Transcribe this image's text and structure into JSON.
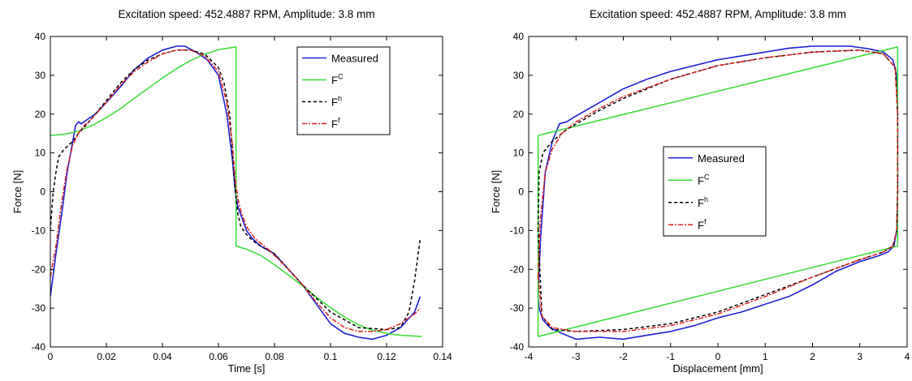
{
  "chart_data": [
    {
      "type": "line",
      "title": "Excitation speed: 452.4887 RPM, Amplitude: 3.8 mm",
      "xlabel": "Time [s]",
      "ylabel": "Force [N]",
      "xlim": [
        0,
        0.14
      ],
      "ylim": [
        -40,
        40
      ],
      "xticks": [
        0,
        0.02,
        0.04,
        0.06,
        0.08,
        0.1,
        0.12,
        0.14
      ],
      "xtick_labels": [
        "0",
        "0.02",
        "0.04",
        "0.06",
        "0.08",
        "0.1",
        "0.12",
        "0.14"
      ],
      "yticks": [
        -40,
        -30,
        -20,
        -10,
        0,
        10,
        20,
        30,
        40
      ],
      "ytick_labels": [
        "-40",
        "-30",
        "-20",
        "-10",
        "0",
        "10",
        "20",
        "30",
        "40"
      ],
      "grid": false,
      "legend_position": "top-right",
      "series": [
        {
          "name": "Measured",
          "base": "F",
          "sup": "",
          "color": "#1f1fd6",
          "dash": "",
          "x": [
            0,
            0.002,
            0.004,
            0.006,
            0.008,
            0.009,
            0.01,
            0.011,
            0.012,
            0.014,
            0.016,
            0.02,
            0.025,
            0.03,
            0.035,
            0.04,
            0.045,
            0.048,
            0.052,
            0.056,
            0.06,
            0.063,
            0.065,
            0.066,
            0.067,
            0.068,
            0.07,
            0.072,
            0.075,
            0.08,
            0.085,
            0.09,
            0.095,
            0.1,
            0.105,
            0.11,
            0.115,
            0.12,
            0.125,
            0.13,
            0.132
          ],
          "y": [
            -27,
            -16,
            -6,
            5,
            13,
            17,
            18,
            17.5,
            18,
            19,
            20,
            23,
            27,
            31.5,
            34.5,
            36.5,
            37.5,
            37.5,
            36,
            34,
            30,
            20,
            8,
            0,
            -4,
            -6,
            -10,
            -12,
            -14,
            -16,
            -20,
            -24,
            -29,
            -34,
            -36.5,
            -37.5,
            -38,
            -37,
            -35,
            -31,
            -27
          ]
        },
        {
          "name": "F^C",
          "base": "F",
          "sup": "C",
          "color": "#33dd33",
          "dash": "",
          "x": [
            0,
            0.005,
            0.01,
            0.015,
            0.02,
            0.025,
            0.03,
            0.035,
            0.04,
            0.045,
            0.05,
            0.055,
            0.06,
            0.0663,
            0.0663,
            0.07,
            0.075,
            0.08,
            0.085,
            0.09,
            0.095,
            0.1,
            0.105,
            0.11,
            0.115,
            0.12,
            0.125,
            0.13,
            0.1326
          ],
          "y": [
            14.5,
            14.8,
            15.6,
            17.1,
            19.1,
            21.4,
            24.1,
            26.7,
            29.3,
            31.7,
            33.8,
            35.4,
            36.6,
            37.3,
            -14,
            -14.8,
            -16.4,
            -18.8,
            -21.5,
            -24.3,
            -27.2,
            -29.9,
            -32.3,
            -34.3,
            -35.7,
            -36.5,
            -37,
            -37.2,
            -37.3
          ]
        },
        {
          "name": "F^h",
          "base": "F",
          "sup": "h",
          "color": "#000000",
          "dash": "4,3",
          "x": [
            0,
            0.001,
            0.002,
            0.003,
            0.005,
            0.008,
            0.01,
            0.015,
            0.02,
            0.025,
            0.03,
            0.035,
            0.04,
            0.045,
            0.05,
            0.055,
            0.06,
            0.062,
            0.064,
            0.065,
            0.066,
            0.067,
            0.068,
            0.07,
            0.072,
            0.075,
            0.08,
            0.09,
            0.1,
            0.11,
            0.12,
            0.125,
            0.128,
            0.13,
            0.132
          ],
          "y": [
            -10,
            0,
            5,
            9,
            11,
            13,
            15,
            19,
            23.5,
            28,
            31.5,
            34,
            35.5,
            36.5,
            36.5,
            35.5,
            32,
            28,
            20,
            10,
            0,
            -6,
            -9,
            -11,
            -12.5,
            -14,
            -16,
            -24,
            -31,
            -35,
            -35.5,
            -35,
            -31,
            -23,
            -12
          ]
        },
        {
          "name": "F^f",
          "base": "F",
          "sup": "f",
          "color": "#e02020",
          "dash": "6,2,2,2",
          "x": [
            0,
            0.002,
            0.004,
            0.006,
            0.008,
            0.01,
            0.012,
            0.015,
            0.02,
            0.025,
            0.03,
            0.035,
            0.04,
            0.045,
            0.05,
            0.055,
            0.06,
            0.063,
            0.065,
            0.066,
            0.067,
            0.068,
            0.07,
            0.073,
            0.078,
            0.085,
            0.09,
            0.095,
            0.1,
            0.105,
            0.11,
            0.115,
            0.12,
            0.125,
            0.13,
            0.132
          ],
          "y": [
            -22,
            -14,
            -3,
            6,
            12,
            15,
            17,
            19,
            23,
            27.5,
            31,
            33.5,
            35.5,
            36.5,
            36.5,
            35,
            31,
            23,
            12,
            3,
            -2,
            -5,
            -9,
            -12,
            -15,
            -20,
            -24,
            -28.5,
            -32.5,
            -35,
            -36,
            -36,
            -35.5,
            -34,
            -31.5,
            -30
          ]
        }
      ]
    },
    {
      "type": "line",
      "title": "Excitation speed: 452.4887 RPM, Amplitude: 3.8 mm",
      "xlabel": "Displacement [mm]",
      "ylabel": "Force [N]",
      "xlim": [
        -4,
        4
      ],
      "ylim": [
        -40,
        40
      ],
      "xticks": [
        -4,
        -3,
        -2,
        -1,
        0,
        1,
        2,
        3,
        4
      ],
      "xtick_labels": [
        "-4",
        "-3",
        "-2",
        "-1",
        "0",
        "1",
        "2",
        "3",
        "4"
      ],
      "yticks": [
        -40,
        -30,
        -20,
        -10,
        0,
        10,
        20,
        30,
        40
      ],
      "ytick_labels": [
        "-40",
        "-30",
        "-20",
        "-10",
        "0",
        "10",
        "20",
        "30",
        "40"
      ],
      "grid": false,
      "legend_position": "center",
      "series": [
        {
          "name": "Measured",
          "base": "F",
          "sup": "",
          "color": "#1f1fd6",
          "dash": "",
          "x": [
            -3.8,
            -3.75,
            -3.65,
            -3.5,
            -3.35,
            -3.2,
            -3,
            -2.5,
            -2,
            -1.5,
            -1,
            -0.5,
            0,
            0.5,
            1,
            1.5,
            2,
            2.5,
            2.8,
            3.2,
            3.5,
            3.7,
            3.78,
            3.8,
            3.8,
            3.78,
            3.72,
            3.6,
            3.4,
            3,
            2.5,
            2,
            1.5,
            1,
            0.5,
            0,
            -0.5,
            -1,
            -1.5,
            -2,
            -2.5,
            -3,
            -3.3,
            -3.55,
            -3.7,
            -3.78,
            -3.8
          ],
          "y": [
            -27,
            -12,
            5,
            13,
            17.5,
            18,
            19.5,
            23,
            26.5,
            29,
            31,
            32.5,
            34,
            35,
            36,
            37,
            37.5,
            37.5,
            37.5,
            36.8,
            36,
            34,
            30,
            20,
            0,
            -10,
            -14,
            -15.5,
            -16.5,
            -18,
            -20.5,
            -24,
            -27,
            -29,
            -31,
            -32.5,
            -34.5,
            -36,
            -37,
            -38,
            -37.5,
            -38,
            -36.5,
            -35,
            -33,
            -30,
            -27
          ]
        },
        {
          "name": "F^C",
          "base": "F",
          "sup": "C",
          "color": "#33dd33",
          "dash": "",
          "x": [
            -3.8,
            3.8,
            3.8,
            -3.8,
            -3.8
          ],
          "y": [
            14.5,
            37.3,
            -14,
            -37.3,
            14.5
          ]
        },
        {
          "name": "F^h",
          "base": "F",
          "sup": "h",
          "color": "#000000",
          "dash": "4,3",
          "x": [
            -3.8,
            -3.78,
            -3.7,
            -3.5,
            -3.2,
            -2.5,
            -2,
            -1,
            0,
            1,
            2,
            3,
            3.5,
            3.75,
            3.8,
            3.8,
            3.78,
            3.7,
            3.5,
            3,
            2,
            1,
            0,
            -1,
            -2,
            -3,
            -3.5,
            -3.72,
            -3.8
          ],
          "y": [
            -10,
            5,
            10,
            13,
            16,
            21,
            24,
            29,
            32.5,
            34.5,
            36,
            36.5,
            35.5,
            32,
            20,
            0,
            -10,
            -14,
            -15.5,
            -17.5,
            -22,
            -26.5,
            -31,
            -34,
            -35.5,
            -36,
            -35.5,
            -32,
            -10
          ]
        },
        {
          "name": "F^f",
          "base": "F",
          "sup": "f",
          "color": "#e02020",
          "dash": "6,2,2,2",
          "x": [
            -3.8,
            -3.76,
            -3.65,
            -3.5,
            -3.3,
            -3,
            -2.5,
            -2,
            -1,
            0,
            1,
            2,
            3,
            3.5,
            3.75,
            3.8,
            3.8,
            3.78,
            3.7,
            3.5,
            3,
            2,
            1,
            0,
            -1,
            -2,
            -3,
            -3.5,
            -3.72,
            -3.8
          ],
          "y": [
            -22,
            -8,
            5,
            11,
            15,
            18,
            21.5,
            24.5,
            29,
            32.5,
            34.5,
            36,
            36.5,
            35.5,
            32,
            20,
            0,
            -10,
            -14,
            -15.5,
            -17.5,
            -22,
            -27,
            -31.5,
            -34.5,
            -36,
            -36,
            -35,
            -32,
            -22
          ]
        }
      ]
    }
  ]
}
